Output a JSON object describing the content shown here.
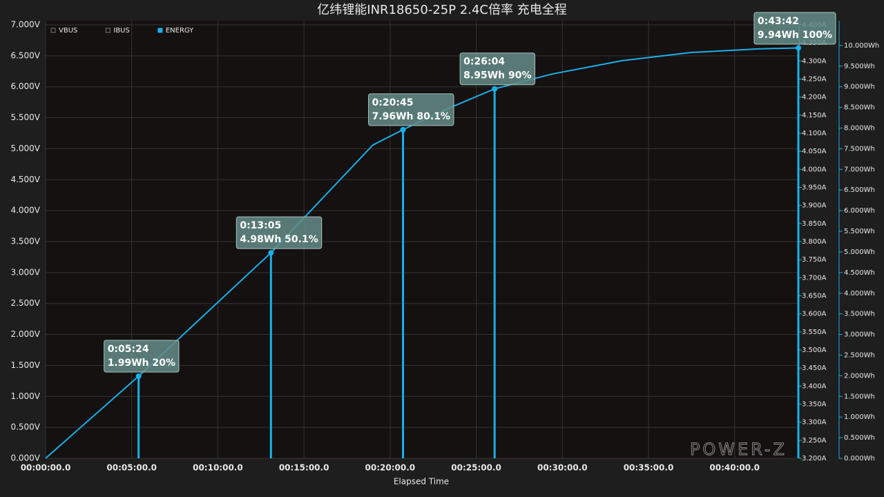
{
  "chart_data": {
    "type": "line",
    "title": "亿纬锂能INR18650-25P 2.4C倍率 充电全程",
    "xlabel": "Elapsed Time",
    "watermark": "POWER-Z",
    "legend": "upper left",
    "grid": true,
    "x": [
      0,
      324,
      785,
      1140,
      1245,
      1284,
      1404,
      1564,
      1765,
      2006,
      2246,
      2487,
      2622
    ],
    "series": [
      {
        "name": "VBUS",
        "color": "#000000",
        "axis": "y",
        "values": [
          null,
          null,
          null,
          null,
          null,
          null,
          null,
          null,
          null,
          null,
          null,
          null,
          null
        ]
      },
      {
        "name": "IBUS",
        "color": "#000000",
        "axis": "y2",
        "values": [
          null,
          null,
          null,
          null,
          null,
          null,
          null,
          null,
          null,
          null,
          null,
          null,
          null
        ]
      },
      {
        "name": "ENERGY",
        "color": "#1ab0e8",
        "axis": "y3",
        "values": [
          0,
          1.99,
          4.98,
          7.59,
          7.96,
          8.09,
          8.48,
          8.95,
          9.31,
          9.63,
          9.83,
          9.92,
          9.94
        ]
      }
    ],
    "annotations": [
      {
        "x": 324,
        "y": 1.99,
        "time": "0:05:24",
        "text": "1.99Wh 20%"
      },
      {
        "x": 785,
        "y": 4.98,
        "time": "0:13:05",
        "text": "4.98Wh 50.1%"
      },
      {
        "x": 1245,
        "y": 7.96,
        "time": "0:20:45",
        "text": "7.96Wh 80.1%"
      },
      {
        "x": 1564,
        "y": 8.95,
        "time": "0:26:04",
        "text": "8.95Wh 90%"
      },
      {
        "x": 2622,
        "y": 9.94,
        "time": "0:43:42",
        "text": "9.94Wh 100%"
      }
    ],
    "xlim": [
      0,
      2622
    ],
    "xticks": [
      {
        "value": 0,
        "label": "00:00:00.0"
      },
      {
        "value": 300,
        "label": "00:05:00.0"
      },
      {
        "value": 600,
        "label": "00:10:00.0"
      },
      {
        "value": 900,
        "label": "00:15:00.0"
      },
      {
        "value": 1200,
        "label": "00:20:00.0"
      },
      {
        "value": 1500,
        "label": "00:25:00.0"
      },
      {
        "value": 1800,
        "label": "00:30:00.0"
      },
      {
        "value": 2100,
        "label": "00:35:00.0"
      },
      {
        "value": 2400,
        "label": "00:40:00.0"
      }
    ],
    "ylim": [
      0,
      7
    ],
    "yticks": [
      {
        "value": 0,
        "label": "0.000V"
      },
      {
        "value": 0.5,
        "label": "0.500V"
      },
      {
        "value": 1,
        "label": "1.000V"
      },
      {
        "value": 1.5,
        "label": "1.500V"
      },
      {
        "value": 2,
        "label": "2.000V"
      },
      {
        "value": 2.5,
        "label": "2.500V"
      },
      {
        "value": 3,
        "label": "3.000V"
      },
      {
        "value": 3.5,
        "label": "3.500V"
      },
      {
        "value": 4,
        "label": "4.000V"
      },
      {
        "value": 4.5,
        "label": "4.500V"
      },
      {
        "value": 5,
        "label": "5.000V"
      },
      {
        "value": 5.5,
        "label": "5.500V"
      },
      {
        "value": 6,
        "label": "6.000V"
      },
      {
        "value": 6.5,
        "label": "6.500V"
      },
      {
        "value": 7,
        "label": "7.000V"
      }
    ],
    "y2lim": [
      3.2,
      4.4
    ],
    "y2ticks": [
      {
        "value": 3.2,
        "label": "3.200A"
      },
      {
        "value": 3.25,
        "label": "3.250A"
      },
      {
        "value": 3.3,
        "label": "3.300A"
      },
      {
        "value": 3.35,
        "label": "3.350A"
      },
      {
        "value": 3.4,
        "label": "3.400A"
      },
      {
        "value": 3.45,
        "label": "3.450A"
      },
      {
        "value": 3.5,
        "label": "3.500A"
      },
      {
        "value": 3.55,
        "label": "3.550A"
      },
      {
        "value": 3.6,
        "label": "3.600A"
      },
      {
        "value": 3.65,
        "label": "3.650A"
      },
      {
        "value": 3.7,
        "label": "3.700A"
      },
      {
        "value": 3.75,
        "label": "3.750A"
      },
      {
        "value": 3.8,
        "label": "3.800A"
      },
      {
        "value": 3.85,
        "label": "3.850A"
      },
      {
        "value": 3.9,
        "label": "3.900A"
      },
      {
        "value": 3.95,
        "label": "3.950A"
      },
      {
        "value": 4,
        "label": "4.000A"
      },
      {
        "value": 4.05,
        "label": "4.050A"
      },
      {
        "value": 4.1,
        "label": "4.100A"
      },
      {
        "value": 4.15,
        "label": "4.150A"
      },
      {
        "value": 4.2,
        "label": "4.200A"
      },
      {
        "value": 4.25,
        "label": "4.250A"
      },
      {
        "value": 4.3,
        "label": "4.300A"
      },
      {
        "value": 4.35,
        "label": "4.350A"
      },
      {
        "value": 4.4,
        "label": "4.400A"
      }
    ],
    "y3lim": [
      0,
      10.5
    ],
    "y3ticks": [
      {
        "value": 0,
        "label": "0.000Wh"
      },
      {
        "value": 0.5,
        "label": "0.500Wh"
      },
      {
        "value": 1,
        "label": "1.000Wh"
      },
      {
        "value": 1.5,
        "label": "1.500Wh"
      },
      {
        "value": 2,
        "label": "2.000Wh"
      },
      {
        "value": 2.5,
        "label": "2.500Wh"
      },
      {
        "value": 3,
        "label": "3.000Wh"
      },
      {
        "value": 3.5,
        "label": "3.500Wh"
      },
      {
        "value": 4,
        "label": "4.000Wh"
      },
      {
        "value": 4.5,
        "label": "4.500Wh"
      },
      {
        "value": 5,
        "label": "5.000Wh"
      },
      {
        "value": 5.5,
        "label": "5.500Wh"
      },
      {
        "value": 6,
        "label": "6.000Wh"
      },
      {
        "value": 6.5,
        "label": "6.500Wh"
      },
      {
        "value": 7,
        "label": "7.000Wh"
      },
      {
        "value": 7.5,
        "label": "7.500Wh"
      },
      {
        "value": 8,
        "label": "8.000Wh"
      },
      {
        "value": 8.5,
        "label": "8.500Wh"
      },
      {
        "value": 9,
        "label": "9.000Wh"
      },
      {
        "value": 9.5,
        "label": "9.500Wh"
      },
      {
        "value": 10,
        "label": "10.000Wh"
      }
    ]
  }
}
